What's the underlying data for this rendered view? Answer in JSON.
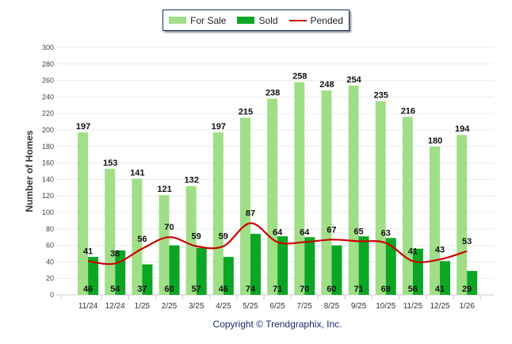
{
  "chart_data": {
    "type": "bar",
    "title": "",
    "xlabel": "",
    "ylabel": "Number of Homes",
    "ylim": [
      0,
      300
    ],
    "yticks": [
      0,
      20,
      40,
      60,
      80,
      100,
      120,
      140,
      160,
      180,
      200,
      220,
      240,
      260,
      280,
      300
    ],
    "grid": true,
    "legend_position": "top-center",
    "categories": [
      "11/24",
      "12/24",
      "1/25",
      "2/25",
      "3/25",
      "4/25",
      "5/25",
      "6/25",
      "7/25",
      "8/25",
      "9/25",
      "10/25",
      "11/25",
      "12/25",
      "1/26"
    ],
    "series": [
      {
        "name": "For Sale",
        "kind": "bar",
        "color": "#a0df88",
        "values": [
          197,
          153,
          141,
          121,
          132,
          197,
          215,
          238,
          258,
          248,
          254,
          235,
          216,
          180,
          194
        ]
      },
      {
        "name": "Sold",
        "kind": "bar",
        "color": "#0ba626",
        "values": [
          46,
          54,
          37,
          60,
          57,
          46,
          74,
          71,
          70,
          60,
          71,
          69,
          56,
          41,
          29
        ]
      },
      {
        "name": "Pended",
        "kind": "line",
        "color": "#cc0000",
        "values": [
          41,
          38,
          56,
          70,
          59,
          59,
          87,
          64,
          64,
          67,
          65,
          63,
          41,
          43,
          53
        ]
      }
    ]
  },
  "copyright": "Copyright © Trendgraphix, Inc."
}
